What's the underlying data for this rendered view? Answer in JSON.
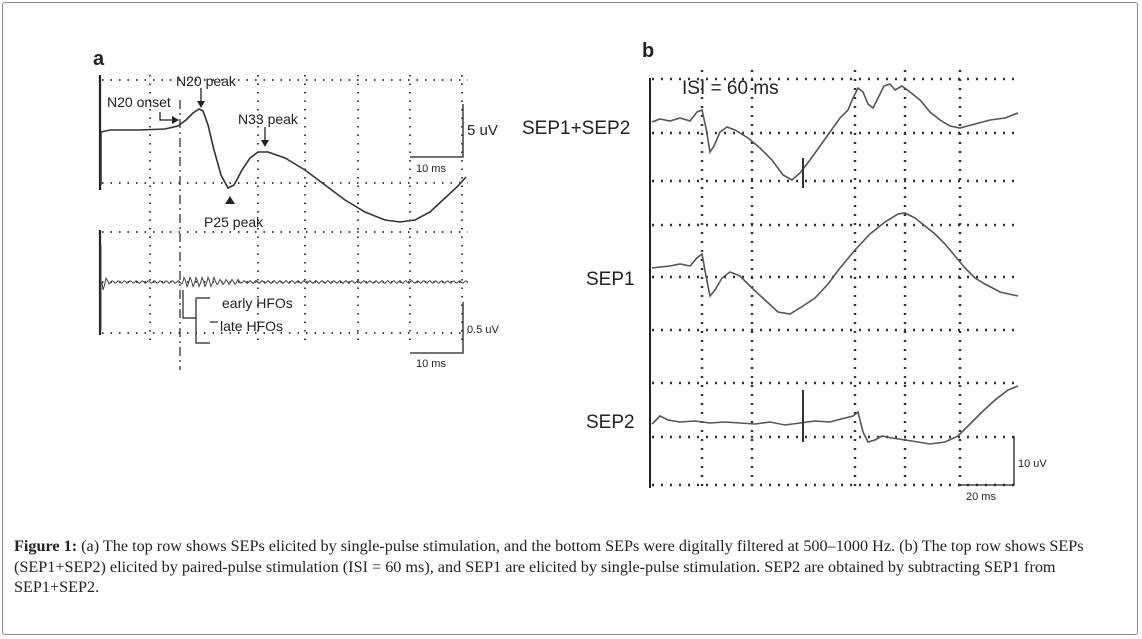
{
  "figure": {
    "panel_a": {
      "label": "a",
      "annotations": {
        "n20_onset": "N20 onset",
        "n20_peak": "N20 peak",
        "n33_peak": "N33 peak",
        "p25_peak": "P25 peak",
        "early_hfos": "early HFOs",
        "late_hfos": "late HFOs"
      },
      "scale_top": {
        "amplitude": "5 uV",
        "time": "10 ms"
      },
      "scale_bottom": {
        "amplitude": "0.5 uV",
        "time": "10 ms"
      }
    },
    "panel_b": {
      "label": "b",
      "isi": "ISI = 60 ms",
      "traces": [
        "SEP1+SEP2",
        "SEP1",
        "SEP2"
      ],
      "scale": {
        "amplitude": "10 uV",
        "time": "20 ms"
      }
    }
  },
  "caption": {
    "label": "Figure 1:",
    "text": " (a) The top row shows SEPs elicited by single-pulse stimulation, and the bottom SEPs were digitally filtered at 500–1000 Hz. (b) The top row shows SEPs (SEP1+SEP2) elicited by paired-pulse stimulation (ISI = 60 ms), and SEP1 are elicited by single-pulse stimulation. SEP2 are obtained by subtracting SEP1 from SEP1+SEP2."
  }
}
